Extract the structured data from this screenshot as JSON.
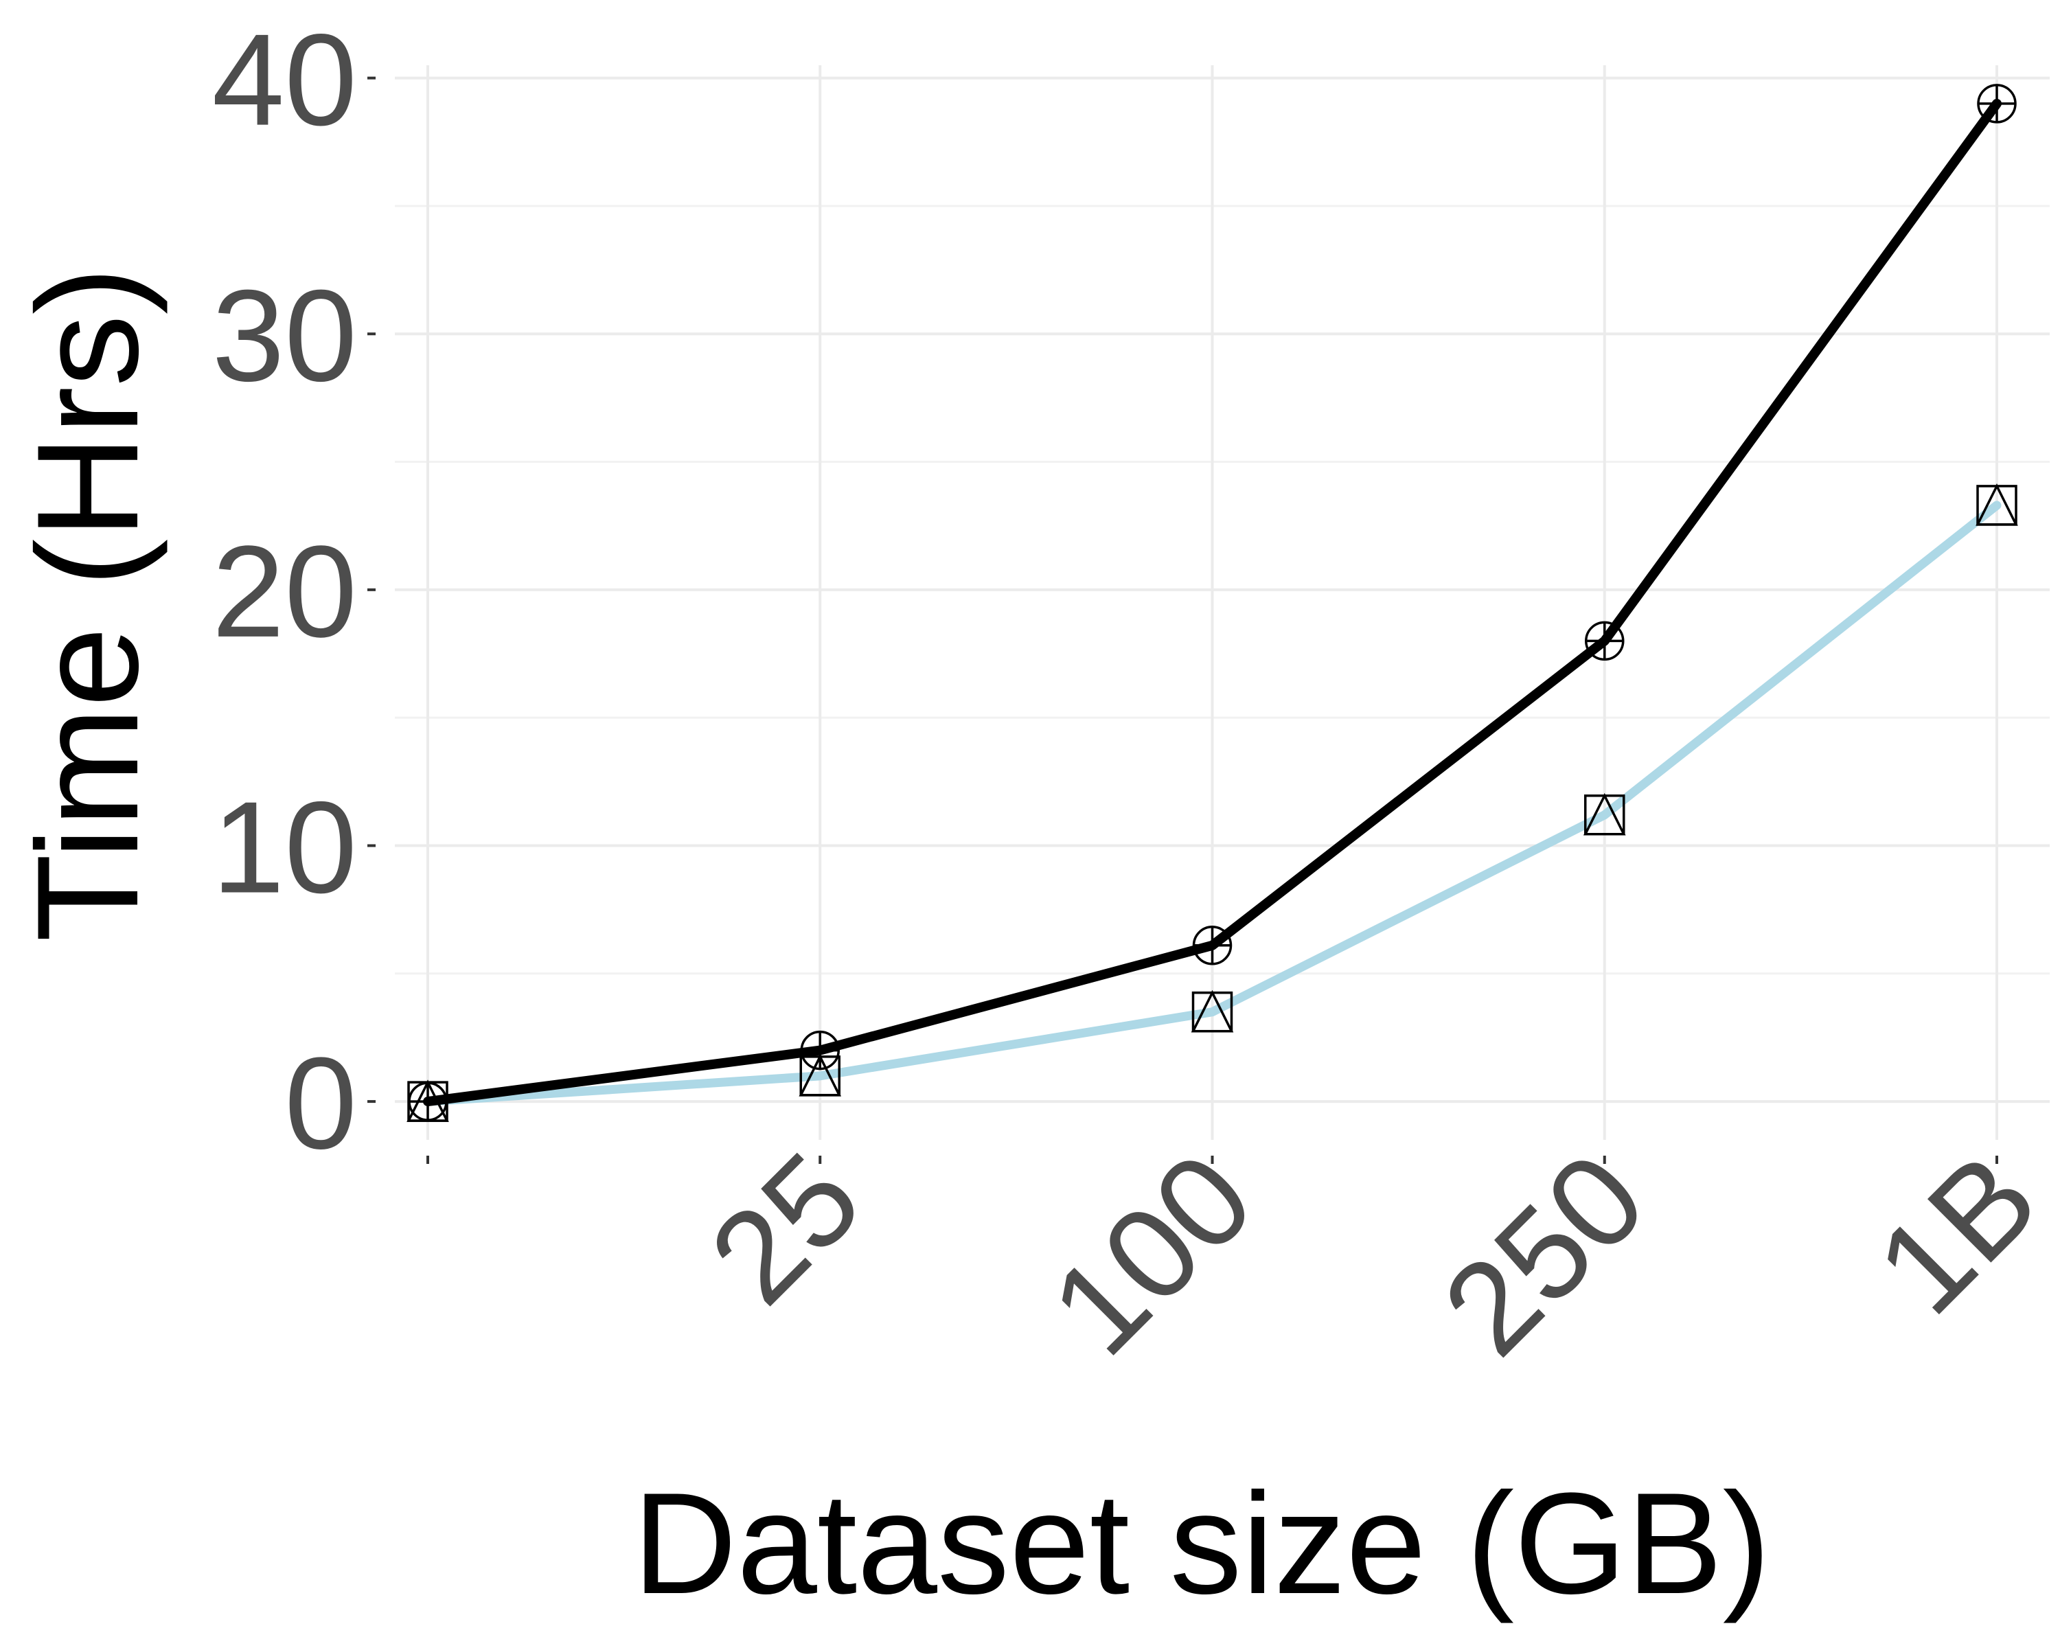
{
  "chart_data": {
    "type": "line",
    "title": "",
    "xlabel": "Dataset size (GB)",
    "ylabel": "Time (Hrs)",
    "categories": [
      "",
      "25",
      "100",
      "250",
      "1B"
    ],
    "ylim": [
      -1.5,
      40.5
    ],
    "yticks": [
      0,
      10,
      20,
      30,
      40
    ],
    "grid": true,
    "legend": "none",
    "series": [
      {
        "values": [
          0,
          2,
          6.1,
          18,
          39
        ],
        "color": "#000000",
        "markers": [
          "circle-plus",
          "circle-plus",
          "circle-plus",
          "circle-plus",
          "circle-plus"
        ]
      },
      {
        "values": [
          0,
          1,
          3.5,
          11.2,
          23.3
        ],
        "color": "#add8e6",
        "markers": [
          "square-triangle",
          "square-triangle",
          "square-triangle",
          "square-triangle",
          "square-triangle"
        ]
      }
    ]
  }
}
